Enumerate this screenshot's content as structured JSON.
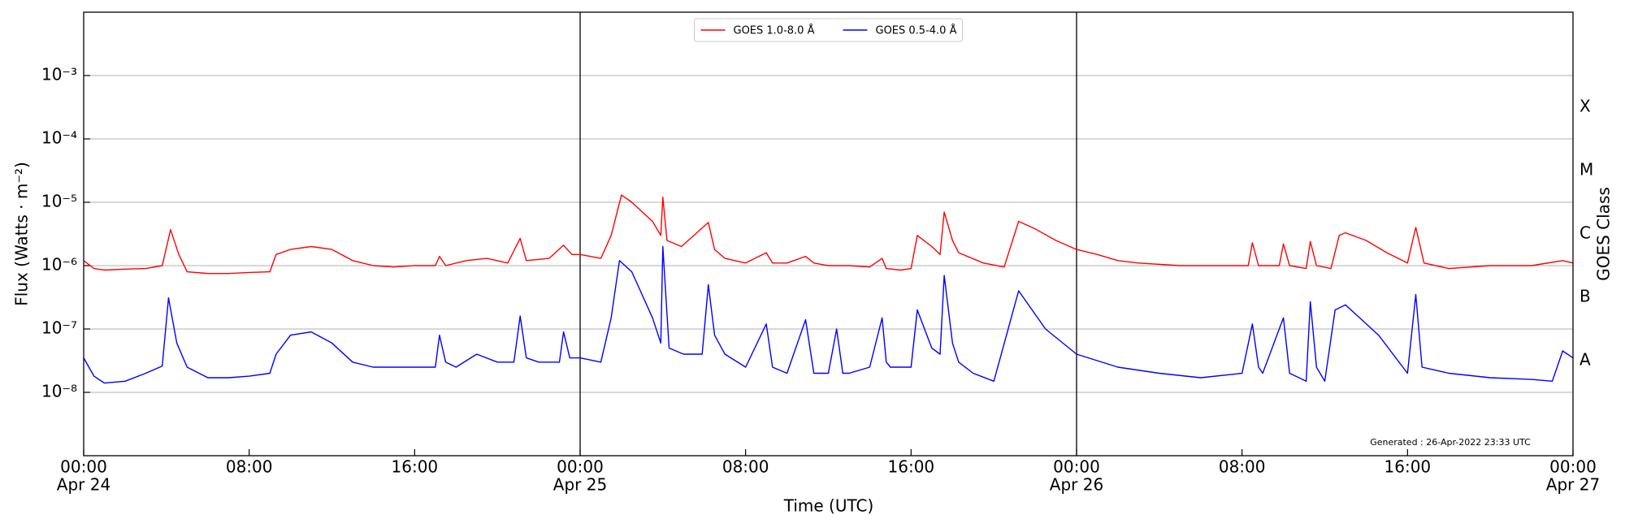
{
  "chart_data": {
    "type": "line",
    "xlabel": "Time (UTC)",
    "ylabel": "Flux (Watts · m⁻²)",
    "y2label": "GOES Class",
    "annotation": "Generated : 26-Apr-2022 23:33 UTC",
    "legend": "upper center",
    "log_y": true,
    "grid": true,
    "xlim": [
      0,
      72
    ],
    "xticks": [
      {
        "value": 0,
        "label": [
          "00:00",
          "Apr 24"
        ]
      },
      {
        "value": 8,
        "label": [
          "08:00"
        ]
      },
      {
        "value": 16,
        "label": [
          "16:00"
        ]
      },
      {
        "value": 24,
        "label": [
          "00:00",
          "Apr 25"
        ]
      },
      {
        "value": 32,
        "label": [
          "08:00"
        ]
      },
      {
        "value": 40,
        "label": [
          "16:00"
        ]
      },
      {
        "value": 48,
        "label": [
          "00:00",
          "Apr 26"
        ]
      },
      {
        "value": 56,
        "label": [
          "08:00"
        ]
      },
      {
        "value": 64,
        "label": [
          "16:00"
        ]
      },
      {
        "value": 72,
        "label": [
          "00:00",
          "Apr 27"
        ]
      }
    ],
    "vlines": [
      24,
      48
    ],
    "ylim": [
      1e-09,
      0.01
    ],
    "yticks": [
      {
        "value": 1e-08,
        "label": "10⁻⁸"
      },
      {
        "value": 1e-07,
        "label": "10⁻⁷"
      },
      {
        "value": 1e-06,
        "label": "10⁻⁶"
      },
      {
        "value": 1e-05,
        "label": "10⁻⁵"
      },
      {
        "value": 0.0001,
        "label": "10⁻⁴"
      },
      {
        "value": 0.001,
        "label": "10⁻³"
      }
    ],
    "y2lim": [
      1e-09,
      0.01
    ],
    "y2ticks": [
      {
        "value": 3.16e-08,
        "label": "A"
      },
      {
        "value": 3.16e-07,
        "label": "B"
      },
      {
        "value": 3.16e-06,
        "label": "C"
      },
      {
        "value": 3.16e-05,
        "label": "M"
      },
      {
        "value": 0.000316,
        "label": "X"
      }
    ],
    "series": [
      {
        "name": "GOES 1.0-8.0 Å",
        "color": "#ff0000",
        "x": [
          0,
          0.5,
          1,
          2,
          3,
          3.8,
          4.2,
          4.6,
          5,
          6,
          7,
          8,
          9,
          9.3,
          10,
          11,
          12,
          13,
          14,
          15,
          16,
          17,
          17.2,
          17.5,
          18.5,
          19.5,
          20.5,
          21.1,
          21.4,
          22.5,
          23.2,
          23.6,
          24,
          25,
          25.5,
          26,
          26.5,
          27.5,
          27.9,
          28,
          28.2,
          28.9,
          30.2,
          30.5,
          31,
          32,
          33,
          33.3,
          34,
          34.9,
          35.3,
          36,
          37,
          38,
          38.6,
          38.8,
          39.5,
          40,
          40.3,
          41,
          41.4,
          41.6,
          42,
          42.3,
          43.5,
          44.5,
          45.2,
          46,
          47,
          48,
          49,
          50,
          51,
          53,
          55,
          56.3,
          56.5,
          56.8,
          57.8,
          58,
          58.3,
          59.1,
          59.3,
          59.6,
          60.3,
          60.7,
          61,
          62,
          63,
          64,
          64.4,
          64.8,
          66,
          68,
          70,
          71.5,
          72
        ],
        "values": [
          1.2e-06,
          9e-07,
          8.5e-07,
          8.8e-07,
          9e-07,
          1e-06,
          3.7e-06,
          1.5e-06,
          8e-07,
          7.5e-07,
          7.5e-07,
          7.8e-07,
          8e-07,
          1.5e-06,
          1.8e-06,
          2e-06,
          1.8e-06,
          1.2e-06,
          1e-06,
          9.5e-07,
          1e-06,
          1e-06,
          1.4e-06,
          1e-06,
          1.2e-06,
          1.3e-06,
          1.1e-06,
          2.7e-06,
          1.2e-06,
          1.3e-06,
          2.1e-06,
          1.5e-06,
          1.5e-06,
          1.3e-06,
          3e-06,
          1.3e-05,
          1e-05,
          5e-06,
          3e-06,
          1.2e-05,
          2.5e-06,
          2e-06,
          4.8e-06,
          1.8e-06,
          1.3e-06,
          1.1e-06,
          1.6e-06,
          1.1e-06,
          1.1e-06,
          1.4e-06,
          1.1e-06,
          1e-06,
          1e-06,
          9.5e-07,
          1.3e-06,
          9e-07,
          8.5e-07,
          9e-07,
          3e-06,
          2e-06,
          1.5e-06,
          7e-06,
          2.5e-06,
          1.6e-06,
          1.1e-06,
          9.5e-07,
          5e-06,
          3.8e-06,
          2.5e-06,
          1.8e-06,
          1.5e-06,
          1.2e-06,
          1.1e-06,
          1e-06,
          1e-06,
          1e-06,
          2.3e-06,
          1e-06,
          1e-06,
          2.2e-06,
          1e-06,
          9e-07,
          2.4e-06,
          1e-06,
          9e-07,
          3e-06,
          3.3e-06,
          2.5e-06,
          1.6e-06,
          1.1e-06,
          4e-06,
          1.1e-06,
          9e-07,
          1e-06,
          1e-06,
          1.2e-06,
          1.1e-06
        ]
      },
      {
        "name": "GOES 0.5-4.0 Å",
        "color": "#0000ff",
        "x": [
          0,
          0.5,
          1,
          2,
          3,
          3.8,
          4.1,
          4.5,
          5,
          6,
          7,
          8,
          9,
          9.3,
          10,
          11,
          12,
          13,
          14,
          15,
          16,
          17,
          17.2,
          17.5,
          18,
          19,
          20,
          20.8,
          21.1,
          21.4,
          22,
          23,
          23.2,
          23.5,
          24,
          25,
          25.5,
          25.9,
          26.5,
          27.5,
          27.9,
          28,
          28.3,
          29,
          29.9,
          30.2,
          30.5,
          31,
          32,
          33,
          33.3,
          34,
          34.9,
          35.3,
          36,
          36.4,
          36.7,
          37,
          38,
          38.6,
          38.8,
          39,
          40,
          40.3,
          41,
          41.4,
          41.6,
          42,
          42.3,
          43,
          44,
          45.2,
          46.5,
          48,
          50,
          52,
          54,
          56,
          56.5,
          56.8,
          57,
          58,
          58.3,
          59.1,
          59.3,
          59.6,
          60,
          60.5,
          61,
          62.6,
          64,
          64.4,
          64.7,
          66,
          68,
          70,
          71,
          71.5,
          72
        ],
        "values": [
          3.5e-08,
          1.8e-08,
          1.4e-08,
          1.5e-08,
          2e-08,
          2.6e-08,
          3.1e-07,
          6e-08,
          2.5e-08,
          1.7e-08,
          1.7e-08,
          1.8e-08,
          2e-08,
          4e-08,
          8e-08,
          9e-08,
          6e-08,
          3e-08,
          2.5e-08,
          2.5e-08,
          2.5e-08,
          2.5e-08,
          8e-08,
          3e-08,
          2.5e-08,
          4e-08,
          3e-08,
          3e-08,
          1.6e-07,
          3.5e-08,
          3e-08,
          3e-08,
          9e-08,
          3.5e-08,
          3.5e-08,
          3e-08,
          1.5e-07,
          1.2e-06,
          8e-07,
          1.5e-07,
          6e-08,
          2e-06,
          5e-08,
          4e-08,
          4e-08,
          5e-07,
          8e-08,
          4e-08,
          2.5e-08,
          1.2e-07,
          2.5e-08,
          2e-08,
          1.4e-07,
          2e-08,
          2e-08,
          1e-07,
          2e-08,
          2e-08,
          2.5e-08,
          1.5e-07,
          3e-08,
          2.5e-08,
          2.5e-08,
          2e-07,
          5e-08,
          4e-08,
          7e-07,
          6e-08,
          3e-08,
          2e-08,
          1.5e-08,
          4e-07,
          1e-07,
          4e-08,
          2.5e-08,
          2e-08,
          1.7e-08,
          2e-08,
          1.2e-07,
          2.5e-08,
          2e-08,
          1.5e-07,
          2e-08,
          1.5e-08,
          2.7e-07,
          2.5e-08,
          1.5e-08,
          2e-07,
          2.4e-07,
          8e-08,
          2e-08,
          3.5e-07,
          2.5e-08,
          2e-08,
          1.7e-08,
          1.6e-08,
          1.5e-08,
          4.5e-08,
          3.5e-08
        ]
      }
    ]
  }
}
